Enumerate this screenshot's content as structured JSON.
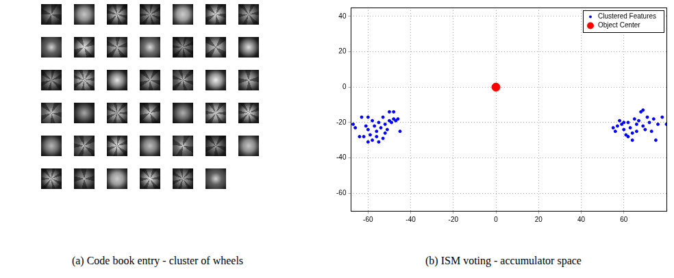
{
  "figure": {
    "panel_a": {
      "caption": "(a) Code book entry - cluster of wheels",
      "patch_rows": [
        7,
        7,
        7,
        7,
        7,
        6
      ]
    },
    "panel_b": {
      "caption": "(b) ISM voting - accumulator space"
    }
  },
  "chart_data": {
    "type": "scatter",
    "series": [
      {
        "name": "Clustered Features",
        "color": "#0000ff",
        "marker": "point",
        "x": [
          -67,
          -66,
          -63,
          -62,
          -61,
          -60,
          -60,
          -59,
          -58,
          -58,
          -57,
          -56,
          -56,
          -55,
          -55,
          -54,
          -53,
          -53,
          -52,
          -52,
          -51,
          -50,
          -50,
          -49,
          -48,
          -48,
          -47,
          -46,
          -45,
          -64,
          -60,
          55,
          56,
          57,
          58,
          59,
          60,
          61,
          62,
          62,
          63,
          64,
          65,
          66,
          66,
          67,
          68,
          69,
          69,
          70,
          71,
          72,
          73,
          74,
          75,
          76,
          78,
          80,
          64,
          60
        ],
        "values": [
          -21,
          -23,
          -17,
          -28,
          -22,
          -17,
          -24,
          -27,
          -19,
          -30,
          -22,
          -25,
          -28,
          -20,
          -31,
          -23,
          -29,
          -17,
          -26,
          -21,
          -24,
          -19,
          -14,
          -20,
          -18,
          -14,
          -19,
          -18,
          -25,
          -28,
          -31,
          -23,
          -25,
          -22,
          -19,
          -21,
          -24,
          -27,
          -20,
          -28,
          -23,
          -26,
          -18,
          -21,
          -25,
          -19,
          -14,
          -13,
          -22,
          -24,
          -17,
          -20,
          -25,
          -18,
          -30,
          -21,
          -17,
          -21,
          -30,
          -20
        ]
      },
      {
        "name": "Object Center",
        "color": "#ff0000",
        "marker": "circle",
        "x": [
          0
        ],
        "values": [
          0
        ]
      }
    ],
    "xlim": [
      -68,
      80
    ],
    "ylim": [
      -70,
      45
    ],
    "xticks": [
      -60,
      -40,
      -20,
      0,
      20,
      40,
      60
    ],
    "yticks": [
      -60,
      -40,
      -20,
      0,
      20,
      40
    ],
    "grid": true,
    "legend": "upper right"
  }
}
